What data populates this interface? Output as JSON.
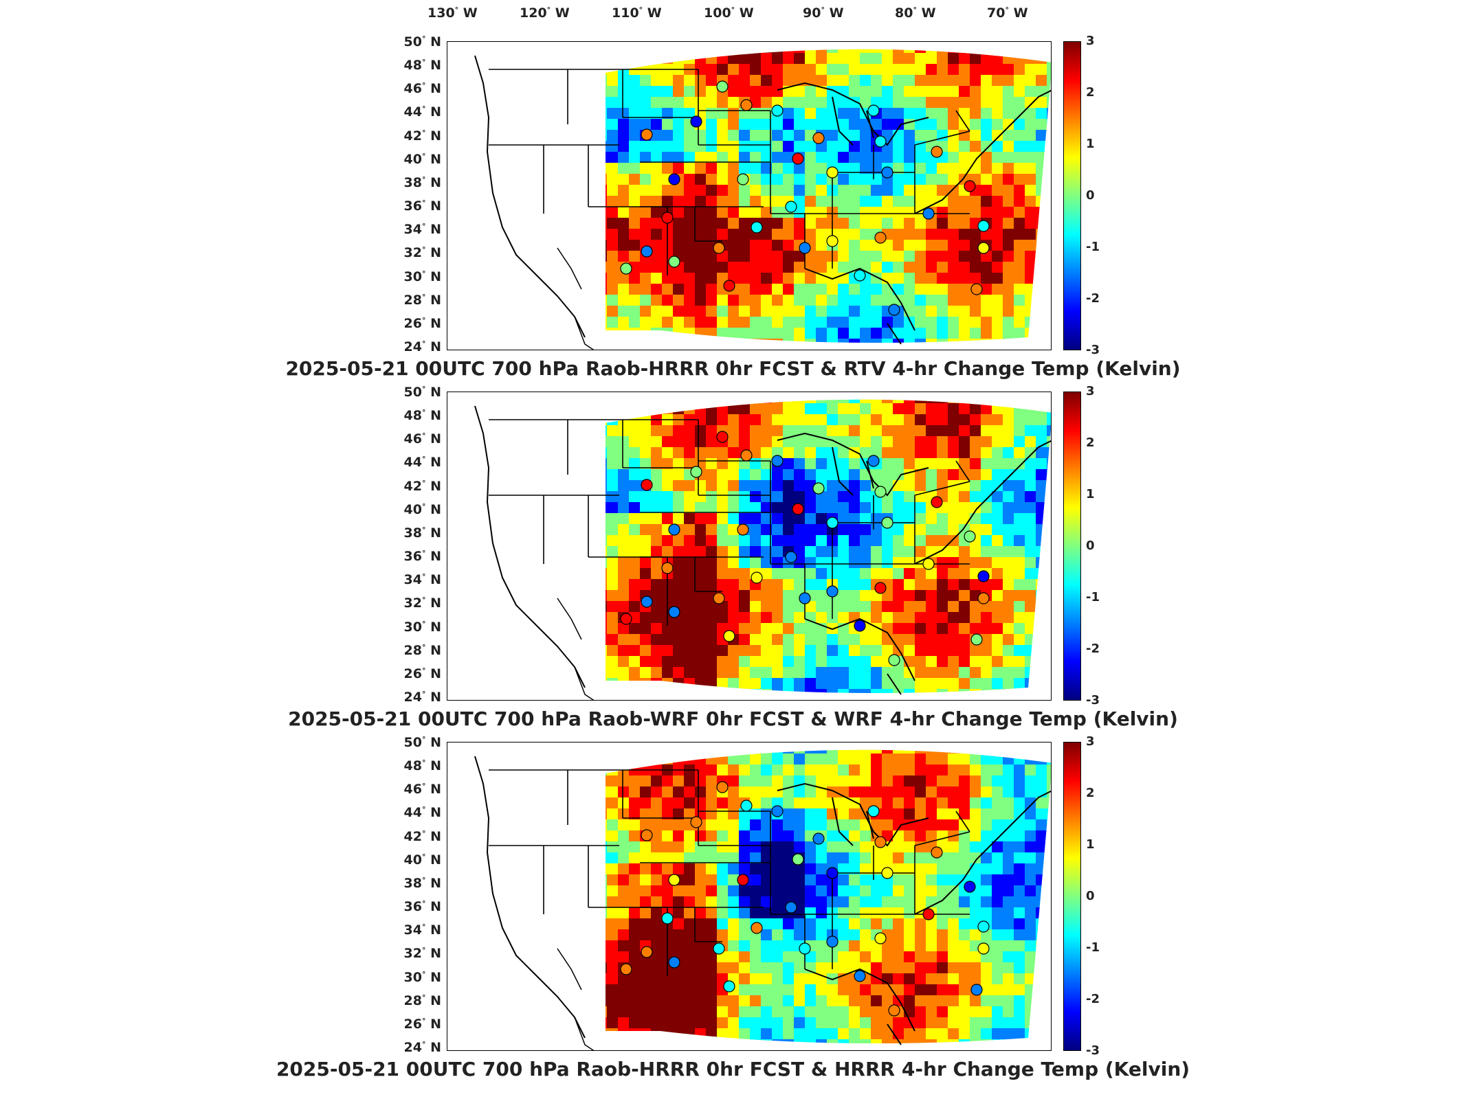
{
  "lon_labels": [
    "130",
    "120",
    "110",
    "100",
    "90",
    "80",
    "70"
  ],
  "lon_suffix": "W",
  "lat_labels": [
    "50",
    "48",
    "46",
    "44",
    "42",
    "40",
    "38",
    "36",
    "34",
    "32",
    "30",
    "28",
    "26",
    "24"
  ],
  "lat_suffix": "N",
  "degree_symbol": "°",
  "colorbar": {
    "ticks": [
      "3",
      "2",
      "1",
      "0",
      "-1",
      "-2",
      "-3"
    ],
    "colors": [
      "#00007f",
      "#0000ff",
      "#0080ff",
      "#00ffff",
      "#80ff80",
      "#ffff00",
      "#ff8000",
      "#ff0000",
      "#7f0000"
    ],
    "range": [
      -3,
      3
    ]
  },
  "panels": [
    {
      "title": "2025-05-21 00UTC 700 hPa Raob-HRRR 0hr FCST & RTV 4-hr Change Temp (Kelvin)"
    },
    {
      "title": "2025-05-21 00UTC 700 hPa Raob-WRF 0hr FCST & WRF 4-hr Change Temp (Kelvin)"
    },
    {
      "title": "2025-05-21 00UTC 700 hPa Raob-HRRR 0hr FCST & HRRR 4-hr Change Temp (Kelvin)"
    }
  ]
}
